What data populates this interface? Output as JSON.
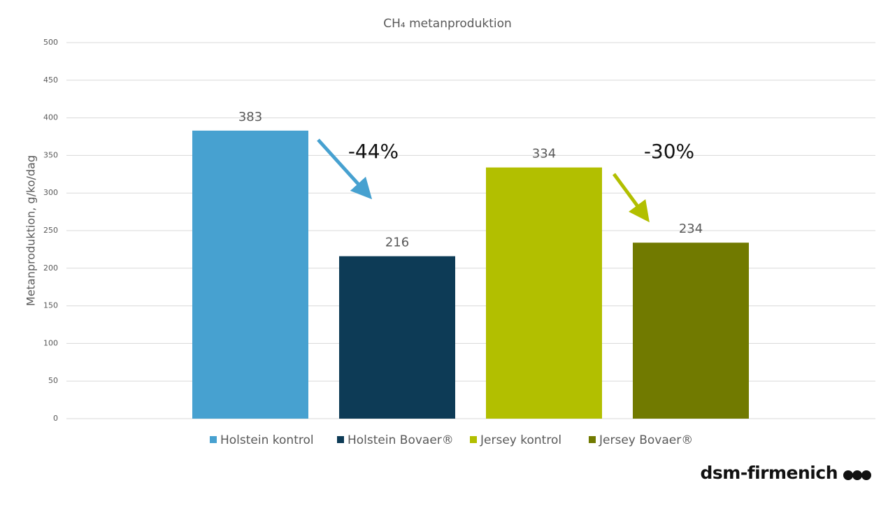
{
  "chart_data": {
    "type": "bar",
    "title": "CH₄ metanproduktion",
    "y_label": "Metanproduktion, g/ko/dag",
    "categories": [
      null
    ],
    "series": [
      {
        "name": "Holstein kontrol",
        "color": "#47a1d0",
        "values": [
          383
        ]
      },
      {
        "name": "Holstein Bovaer®",
        "color": "#0d3b56",
        "values": [
          216
        ]
      },
      {
        "name": "Jersey kontrol",
        "color": "#b2bf00",
        "values": [
          334
        ]
      },
      {
        "name": "Jersey Bovaer®",
        "color": "#717a00",
        "values": [
          234
        ]
      }
    ],
    "ylim": [
      0,
      500
    ],
    "yticks": [
      0,
      50,
      100,
      150,
      200,
      250,
      300,
      350,
      400,
      450,
      500
    ],
    "grid": true,
    "legend": "bottom",
    "annotations": [
      {
        "text": "-44%"
      },
      {
        "text": "-30%"
      }
    ]
  },
  "logo": "dsm-firmenich"
}
